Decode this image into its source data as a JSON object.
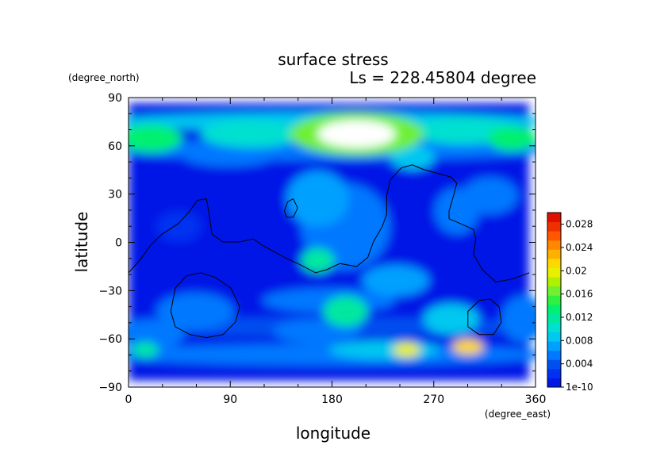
{
  "chart_data": {
    "type": "heatmap",
    "title": "surface stress",
    "subtitle": "Ls = 228.45804 degree",
    "xlabel": "longitude",
    "ylabel": "latitude",
    "x_units": "(degree_east)",
    "y_units": "(degree_north)",
    "xlim": [
      0,
      360
    ],
    "ylim": [
      -90,
      90
    ],
    "x_ticks": [
      0,
      90,
      180,
      270,
      360
    ],
    "y_ticks": [
      -90,
      -60,
      -30,
      0,
      30,
      60,
      90
    ],
    "grid": false,
    "legend": "right",
    "colorbar": {
      "labels": [
        "1e-10",
        "0.004",
        "0.008",
        "0.012",
        "0.016",
        "0.02",
        "0.024",
        "0.028"
      ],
      "range": [
        0,
        0.03
      ],
      "colors": [
        "#0018e6",
        "#0030f0",
        "#0050f0",
        "#0078ff",
        "#00a0ff",
        "#00c8f0",
        "#00e0d0",
        "#00e8a0",
        "#00f070",
        "#30f040",
        "#70f030",
        "#b0f000",
        "#e8f000",
        "#ffd800",
        "#ffb000",
        "#ff8800",
        "#ff5800",
        "#f03000",
        "#e01000"
      ]
    },
    "field_blobs": [
      {
        "lon": 205,
        "lat": 70,
        "rlon": 35,
        "rlat": 9,
        "value": 0.034
      },
      {
        "lon": 205,
        "lat": 70,
        "rlon": 60,
        "rlat": 14,
        "value": 0.016
      },
      {
        "lon": 20,
        "lat": 67,
        "rlon": 28,
        "rlat": 9,
        "value": 0.014
      },
      {
        "lon": 110,
        "lat": 70,
        "rlon": 45,
        "rlat": 9,
        "value": 0.011
      },
      {
        "lon": 345,
        "lat": 67,
        "rlon": 22,
        "rlat": 8,
        "value": 0.013
      },
      {
        "lon": 300,
        "lat": 72,
        "rlon": 45,
        "rlat": 9,
        "value": 0.01
      },
      {
        "lon": 180,
        "lat": 78,
        "rlon": 200,
        "rlat": 6,
        "value": 0.008
      },
      {
        "lon": 180,
        "lat": 60,
        "rlon": 200,
        "rlat": 7,
        "value": 0.006
      },
      {
        "lon": 90,
        "lat": 55,
        "rlon": 40,
        "rlat": 6,
        "value": 0.006
      },
      {
        "lon": 255,
        "lat": 55,
        "rlon": 20,
        "rlat": 8,
        "value": 0.009
      },
      {
        "lon": 170,
        "lat": 28,
        "rlon": 28,
        "rlat": 18,
        "value": 0.007
      },
      {
        "lon": 195,
        "lat": 10,
        "rlon": 40,
        "rlat": 28,
        "value": 0.006
      },
      {
        "lon": 170,
        "lat": -12,
        "rlon": 15,
        "rlat": 8,
        "value": 0.012
      },
      {
        "lon": 240,
        "lat": -25,
        "rlon": 30,
        "rlat": 10,
        "value": 0.007
      },
      {
        "lon": 325,
        "lat": 30,
        "rlon": 25,
        "rlat": 12,
        "value": 0.006
      },
      {
        "lon": 295,
        "lat": 20,
        "rlon": 20,
        "rlat": 15,
        "value": 0.005
      },
      {
        "lon": 60,
        "lat": -45,
        "rlon": 35,
        "rlat": 12,
        "value": 0.006
      },
      {
        "lon": 195,
        "lat": -45,
        "rlon": 20,
        "rlat": 10,
        "value": 0.012
      },
      {
        "lon": 290,
        "lat": -50,
        "rlon": 25,
        "rlat": 10,
        "value": 0.009
      },
      {
        "lon": 180,
        "lat": -38,
        "rlon": 60,
        "rlat": 8,
        "value": 0.005
      },
      {
        "lon": 250,
        "lat": -70,
        "rlon": 12,
        "rlat": 5,
        "value": 0.02
      },
      {
        "lon": 305,
        "lat": -68,
        "rlon": 14,
        "rlat": 5,
        "value": 0.022
      },
      {
        "lon": 15,
        "lat": -70,
        "rlon": 12,
        "rlat": 5,
        "value": 0.012
      },
      {
        "lon": 230,
        "lat": -70,
        "rlon": 50,
        "rlat": 6,
        "value": 0.008
      },
      {
        "lon": 180,
        "lat": -73,
        "rlon": 200,
        "rlat": 7,
        "value": 0.006
      },
      {
        "lon": 180,
        "lat": -55,
        "rlon": 200,
        "rlat": 6,
        "value": 0.004
      },
      {
        "lon": 20,
        "lat": -60,
        "rlon": 30,
        "rlat": 10,
        "value": 0.005
      },
      {
        "lon": 170,
        "lat": -58,
        "rlon": 40,
        "rlat": 8,
        "value": 0.006
      },
      {
        "lon": 355,
        "lat": -50,
        "rlon": 20,
        "rlat": 15,
        "value": 0.005
      },
      {
        "lon": 45,
        "lat": 10,
        "rlon": 20,
        "rlat": 10,
        "value": 0.003
      }
    ],
    "contours": [
      [
        [
          0,
          -20
        ],
        [
          10,
          -12
        ],
        [
          20,
          -2
        ],
        [
          30,
          5
        ],
        [
          45,
          12
        ],
        [
          55,
          20
        ],
        [
          62,
          27
        ],
        [
          70,
          28
        ],
        [
          72,
          20
        ],
        [
          75,
          5
        ],
        [
          85,
          0
        ],
        [
          100,
          0
        ],
        [
          112,
          2
        ],
        [
          120,
          -2
        ],
        [
          130,
          -6
        ],
        [
          140,
          -10
        ],
        [
          155,
          -15
        ],
        [
          168,
          -20
        ],
        [
          178,
          -18
        ],
        [
          190,
          -14
        ],
        [
          205,
          -16
        ],
        [
          215,
          -10
        ],
        [
          220,
          0
        ],
        [
          228,
          10
        ],
        [
          232,
          18
        ],
        [
          232,
          30
        ],
        [
          235,
          40
        ],
        [
          245,
          48
        ],
        [
          255,
          50
        ],
        [
          265,
          47
        ],
        [
          275,
          45
        ],
        [
          290,
          42
        ],
        [
          295,
          38
        ],
        [
          292,
          30
        ],
        [
          288,
          20
        ],
        [
          288,
          15
        ],
        [
          298,
          12
        ],
        [
          310,
          8
        ],
        [
          312,
          2
        ],
        [
          310,
          -8
        ],
        [
          318,
          -18
        ],
        [
          330,
          -26
        ],
        [
          345,
          -24
        ],
        [
          360,
          -20
        ]
      ],
      [
        [
          140,
          20
        ],
        [
          143,
          26
        ],
        [
          148,
          28
        ],
        [
          152,
          22
        ],
        [
          148,
          16
        ],
        [
          142,
          16
        ],
        [
          140,
          20
        ]
      ],
      [
        [
          38,
          -45
        ],
        [
          42,
          -30
        ],
        [
          52,
          -22
        ],
        [
          65,
          -20
        ],
        [
          78,
          -23
        ],
        [
          92,
          -30
        ],
        [
          100,
          -42
        ],
        [
          96,
          -52
        ],
        [
          85,
          -60
        ],
        [
          70,
          -62
        ],
        [
          55,
          -60
        ],
        [
          42,
          -55
        ],
        [
          38,
          -45
        ]
      ],
      [
        [
          305,
          -55
        ],
        [
          305,
          -45
        ],
        [
          315,
          -38
        ],
        [
          325,
          -37
        ],
        [
          333,
          -42
        ],
        [
          335,
          -52
        ],
        [
          328,
          -60
        ],
        [
          315,
          -60
        ],
        [
          305,
          -55
        ]
      ]
    ]
  }
}
